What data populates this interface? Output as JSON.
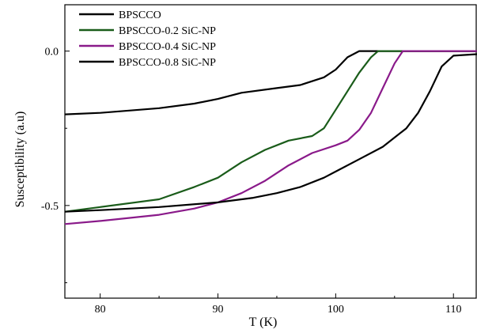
{
  "chart_data": {
    "type": "line",
    "title": "",
    "xlabel": "T (K)",
    "ylabel": "Susceptibility (a.u)",
    "xlim": [
      77,
      112
    ],
    "ylim": [
      -0.8,
      0.15
    ],
    "x_ticks": [
      80,
      90,
      100,
      110
    ],
    "y_ticks": [
      0.0,
      -0.5
    ],
    "x_tick_labels": [
      "80",
      "90",
      "100",
      "110"
    ],
    "y_tick_labels": [
      "0.0",
      "-0.5"
    ],
    "grid": false,
    "legend_position": "top-left",
    "series": [
      {
        "name": "BPSCCO",
        "color": "#000000",
        "x": [
          77,
          80,
          85,
          88,
          90,
          92,
          95,
          97,
          99,
          100,
          101,
          102,
          104,
          108,
          112
        ],
        "y": [
          -0.205,
          -0.2,
          -0.185,
          -0.17,
          -0.155,
          -0.135,
          -0.12,
          -0.11,
          -0.085,
          -0.06,
          -0.02,
          0,
          0,
          0,
          0
        ]
      },
      {
        "name": "BPSCCO-0.2 SiC-NP",
        "color": "#1a5c1a",
        "x": [
          77,
          80,
          85,
          88,
          90,
          92,
          94,
          95,
          96,
          98,
          99,
          100,
          101,
          102,
          103,
          103.6,
          105,
          108,
          112
        ],
        "y": [
          -0.52,
          -0.505,
          -0.48,
          -0.44,
          -0.41,
          -0.36,
          -0.32,
          -0.305,
          -0.29,
          -0.275,
          -0.25,
          -0.19,
          -0.13,
          -0.07,
          -0.02,
          0,
          0,
          0,
          0
        ]
      },
      {
        "name": "BPSCCO-0.4 SiC-NP",
        "color": "#8a1a8a",
        "x": [
          77,
          80,
          85,
          88,
          90,
          92,
          94,
          96,
          98,
          100,
          101,
          102,
          103,
          104,
          105,
          105.7,
          107,
          112
        ],
        "y": [
          -0.56,
          -0.55,
          -0.53,
          -0.51,
          -0.49,
          -0.46,
          -0.42,
          -0.37,
          -0.33,
          -0.305,
          -0.29,
          -0.255,
          -0.2,
          -0.12,
          -0.04,
          0,
          0,
          0
        ]
      },
      {
        "name": "BPSCCO-0.8 SiC-NP",
        "color": "#000000",
        "x": [
          77,
          80,
          85,
          90,
          93,
          95,
          97,
          99,
          100,
          102,
          104,
          105,
          106,
          107,
          108,
          109,
          110,
          112
        ],
        "y": [
          -0.52,
          -0.515,
          -0.505,
          -0.49,
          -0.475,
          -0.46,
          -0.44,
          -0.41,
          -0.39,
          -0.35,
          -0.31,
          -0.28,
          -0.25,
          -0.2,
          -0.13,
          -0.05,
          -0.015,
          -0.01
        ]
      }
    ]
  }
}
